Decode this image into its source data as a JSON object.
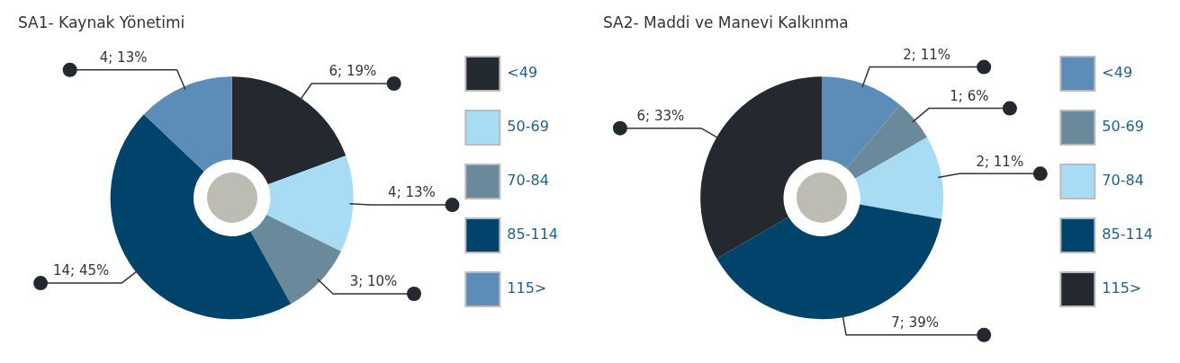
{
  "chart_data": [
    {
      "type": "donut",
      "title": "SA1- Kaynak Yönetimi",
      "categories": [
        "<49",
        "50-69",
        "70-84",
        "85-114",
        "115>"
      ],
      "values": [
        6,
        4,
        3,
        14,
        4
      ],
      "colors": [
        "#23292e",
        "#a8dcf5",
        "#6a8a9c",
        "#00436b",
        "#5b8db8"
      ],
      "value_labels": [
        "6; 19%",
        "4; 13%",
        "3; 10%",
        "14; 45%",
        "4; 13%"
      ],
      "legend": "right"
    },
    {
      "type": "donut",
      "title": "SA2- Maddi ve Manevi Kalkınma",
      "categories": [
        "<49",
        "50-69",
        "70-84",
        "85-114",
        "115>"
      ],
      "values": [
        2,
        1,
        2,
        7,
        6
      ],
      "colors": [
        "#5b8db8",
        "#6a8a9c",
        "#a8dcf5",
        "#00436b",
        "#23292e"
      ],
      "value_labels": [
        "2; 11%",
        "1; 6%",
        "2; 11%",
        "7; 39%",
        "6; 33%"
      ],
      "legend": "right"
    }
  ]
}
